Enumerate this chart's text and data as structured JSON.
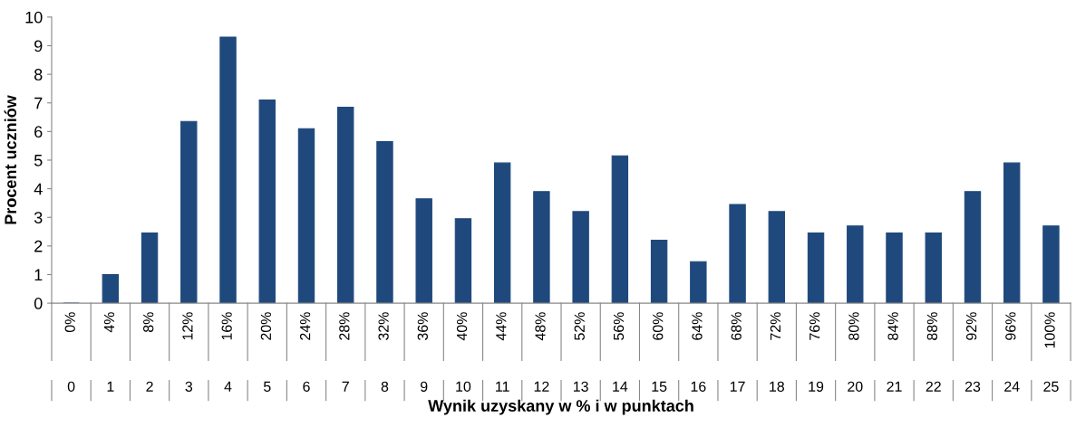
{
  "chart_data": {
    "type": "bar",
    "xlabel": "Wynik uzyskany w % i w punktach",
    "ylabel": "Procent uczniów",
    "categories": [
      "0",
      "1",
      "2",
      "3",
      "4",
      "5",
      "6",
      "7",
      "8",
      "9",
      "10",
      "11",
      "12",
      "13",
      "14",
      "15",
      "16",
      "17",
      "18",
      "19",
      "20",
      "21",
      "22",
      "23",
      "24",
      "25"
    ],
    "values": [
      0,
      1.0,
      2.45,
      6.35,
      9.3,
      7.1,
      6.1,
      6.85,
      5.65,
      3.65,
      2.95,
      4.9,
      3.9,
      3.2,
      5.15,
      2.2,
      1.45,
      3.45,
      3.2,
      2.45,
      2.7,
      2.45,
      2.45,
      3.9,
      4.9,
      2.7
    ],
    "color": "#1f497d",
    "ylim": [
      0,
      10
    ],
    "yticks": [
      0,
      1,
      2,
      3,
      4,
      5,
      6,
      7,
      8,
      9,
      10
    ],
    "grid": false,
    "legend": false,
    "annotations": [
      "0%",
      "4%",
      "8%",
      "12%",
      "16%",
      "20%",
      "24%",
      "28%",
      "32%",
      "36%",
      "40%",
      "44%",
      "48%",
      "52%",
      "56%",
      "60%",
      "64%",
      "68%",
      "72%",
      "76%",
      "80%",
      "84%",
      "88%",
      "92%",
      "96%",
      "100%"
    ]
  }
}
